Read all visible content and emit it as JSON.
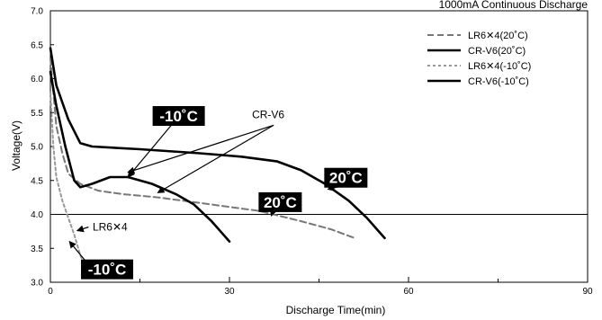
{
  "chart_data": {
    "type": "line",
    "title": "1000mA Continuous Discharge",
    "xlabel": "Discharge Time(min)",
    "ylabel": "Voltage(V)",
    "xlim": [
      0,
      90
    ],
    "ylim": [
      3.0,
      7.0
    ],
    "x_ticks": [
      0,
      30,
      60,
      90
    ],
    "y_ticks": [
      3.0,
      3.5,
      4.0,
      4.5,
      5.0,
      5.5,
      6.0,
      6.5,
      7.0
    ],
    "reference_line_y": 4.0,
    "legend": {
      "placement": "top-right"
    },
    "series": [
      {
        "name": "LR6✕4(20˚C)",
        "style": "dashed",
        "color": "#777777",
        "points": [
          [
            0,
            6.3
          ],
          [
            1,
            5.3
          ],
          [
            2,
            4.9
          ],
          [
            3,
            4.6
          ],
          [
            5,
            4.45
          ],
          [
            8,
            4.35
          ],
          [
            12,
            4.3
          ],
          [
            18,
            4.25
          ],
          [
            25,
            4.17
          ],
          [
            35,
            4.05
          ],
          [
            42,
            3.9
          ],
          [
            47,
            3.78
          ],
          [
            51,
            3.65
          ]
        ]
      },
      {
        "name": "CR-V6(20˚C)",
        "style": "solid",
        "color": "#000000",
        "points": [
          [
            0,
            6.45
          ],
          [
            1,
            5.9
          ],
          [
            3,
            5.4
          ],
          [
            5,
            5.05
          ],
          [
            7,
            5.0
          ],
          [
            15,
            4.96
          ],
          [
            25,
            4.9
          ],
          [
            32,
            4.85
          ],
          [
            38,
            4.78
          ],
          [
            42,
            4.65
          ],
          [
            46,
            4.45
          ],
          [
            50,
            4.2
          ],
          [
            53,
            3.95
          ],
          [
            56,
            3.65
          ]
        ]
      },
      {
        "name": "LR6✕4(-10˚C)",
        "style": "dotted",
        "color": "#999999",
        "points": [
          [
            0,
            5.8
          ],
          [
            0.5,
            5.0
          ],
          [
            1,
            4.55
          ],
          [
            2,
            4.2
          ],
          [
            3,
            3.95
          ],
          [
            4,
            3.7
          ],
          [
            5,
            3.4
          ],
          [
            6,
            3.2
          ]
        ]
      },
      {
        "name": "CR-V6(-10˚C)",
        "style": "solid",
        "color": "#000000",
        "points": [
          [
            0,
            6.1
          ],
          [
            1,
            5.6
          ],
          [
            2.5,
            5.0
          ],
          [
            4,
            4.5
          ],
          [
            5,
            4.4
          ],
          [
            7,
            4.45
          ],
          [
            10,
            4.55
          ],
          [
            13,
            4.55
          ],
          [
            17,
            4.45
          ],
          [
            21,
            4.3
          ],
          [
            24,
            4.15
          ],
          [
            27,
            3.9
          ],
          [
            30,
            3.6
          ]
        ]
      }
    ],
    "annotations": [
      {
        "text": "-10˚C",
        "kind": "tag",
        "x": 21.5,
        "y": 5.45,
        "arrow_to": [
          13,
          4.55
        ]
      },
      {
        "text": "20˚C",
        "kind": "tag",
        "x": 49.5,
        "y": 4.54,
        "arrow_to": [
          46.5,
          4.37
        ]
      },
      {
        "text": "20˚C",
        "kind": "tag",
        "x": 38.5,
        "y": 4.18,
        "arrow_to": [
          37,
          3.98
        ]
      },
      {
        "text": "-10˚C",
        "kind": "tag",
        "x": 9.5,
        "y": 3.19,
        "arrow_to": [
          3.2,
          3.6
        ]
      },
      {
        "text": "CR-V6",
        "kind": "label",
        "x": 36.5,
        "y": 5.42,
        "arrows_to": [
          [
            13,
            4.62
          ],
          [
            18,
            4.32
          ]
        ]
      },
      {
        "text": "LR6✕4",
        "kind": "label",
        "x": 10,
        "y": 3.76,
        "arrow_to": [
          4.5,
          3.76
        ]
      }
    ]
  }
}
